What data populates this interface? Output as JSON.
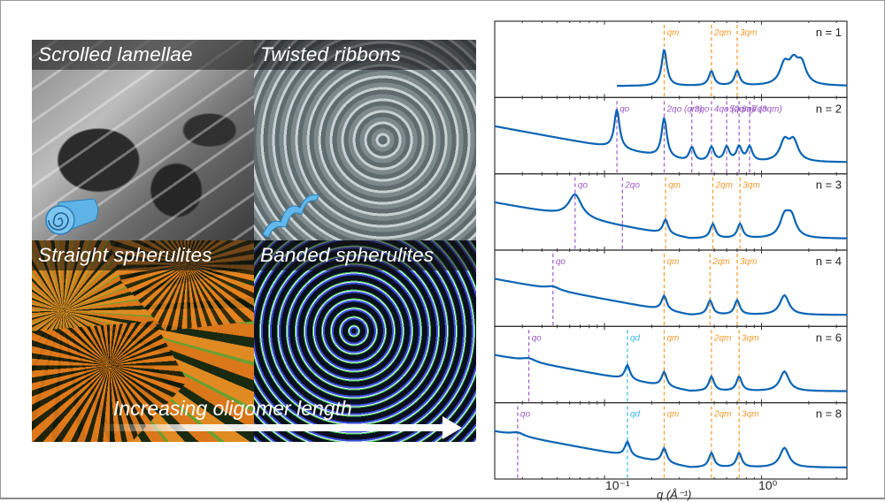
{
  "figure": {
    "left_panel": {
      "tiles": [
        {
          "label": "Scrolled lamellae"
        },
        {
          "label": "Twisted ribbons"
        },
        {
          "label": "Straight spherulites"
        },
        {
          "label": "Banded spherulites"
        }
      ],
      "arrow_label": "Increasing oligomer length"
    },
    "colors": {
      "curve": "#0a64b4",
      "q_o_line": "#9b59c8",
      "q_m_line": "#f39a2b",
      "q_d_line": "#38b6e8",
      "axis": "#333333"
    }
  },
  "chart_data": {
    "type": "line",
    "title": "",
    "xlabel": "q (Å⁻¹)",
    "ylabel": "",
    "xscale": "log",
    "xlim": [
      0.02,
      3.5
    ],
    "x_tick_labels": [
      "10⁻¹",
      "10⁰"
    ],
    "x_ticks": [
      0.1,
      1.0
    ],
    "grid": false,
    "legend": "none (panel labels top-right)",
    "panels": [
      {
        "label": "n = 1",
        "annotations": [
          {
            "text": "qm",
            "x": 0.24,
            "color": "orange"
          },
          {
            "text": "2qm",
            "x": 0.48,
            "color": "orange"
          },
          {
            "text": "3qm",
            "x": 0.7,
            "color": "orange"
          }
        ],
        "peaks_q": [
          0.24,
          0.48,
          0.7,
          1.4,
          1.6,
          1.8
        ]
      },
      {
        "label": "n = 2",
        "annotations": [
          {
            "text": "qo",
            "x": 0.12,
            "color": "purple"
          },
          {
            "text": "2qo (qm)",
            "x": 0.24,
            "color": "purple/orange"
          },
          {
            "text": "3qo",
            "x": 0.36,
            "color": "purple"
          },
          {
            "text": "4qo (2qm)",
            "x": 0.48,
            "color": "purple/orange"
          },
          {
            "text": "5qo",
            "x": 0.6,
            "color": "purple"
          },
          {
            "text": "6qo (3qm)",
            "x": 0.72,
            "color": "purple/orange"
          },
          {
            "text": "7qo",
            "x": 0.84,
            "color": "purple"
          }
        ],
        "peaks_q": [
          0.12,
          0.24,
          0.36,
          0.48,
          0.6,
          0.72,
          0.84,
          1.4,
          1.6
        ]
      },
      {
        "label": "n = 3",
        "annotations": [
          {
            "text": "qo",
            "x": 0.065,
            "color": "purple"
          },
          {
            "text": "2qo",
            "x": 0.13,
            "color": "purple"
          },
          {
            "text": "qm",
            "x": 0.245,
            "color": "orange"
          },
          {
            "text": "2qm",
            "x": 0.49,
            "color": "orange"
          },
          {
            "text": "3qm",
            "x": 0.73,
            "color": "orange"
          }
        ],
        "peaks_q": [
          0.065,
          0.245,
          0.49,
          0.73,
          1.4,
          1.55
        ]
      },
      {
        "label": "n = 4",
        "annotations": [
          {
            "text": "qo",
            "x": 0.047,
            "color": "purple"
          },
          {
            "text": "qm",
            "x": 0.24,
            "color": "orange"
          },
          {
            "text": "2qm",
            "x": 0.47,
            "color": "orange"
          },
          {
            "text": "3qm",
            "x": 0.7,
            "color": "orange"
          }
        ],
        "peaks_q": [
          0.047,
          0.24,
          0.47,
          0.7,
          1.4
        ]
      },
      {
        "label": "n = 6",
        "annotations": [
          {
            "text": "qo",
            "x": 0.033,
            "color": "purple"
          },
          {
            "text": "qd",
            "x": 0.14,
            "color": "light-blue"
          },
          {
            "text": "qm",
            "x": 0.24,
            "color": "orange"
          },
          {
            "text": "2qm",
            "x": 0.48,
            "color": "orange"
          },
          {
            "text": "3qm",
            "x": 0.72,
            "color": "orange"
          }
        ],
        "peaks_q": [
          0.033,
          0.14,
          0.24,
          0.48,
          0.72,
          1.4
        ]
      },
      {
        "label": "n = 8",
        "annotations": [
          {
            "text": "qo",
            "x": 0.028,
            "color": "purple"
          },
          {
            "text": "qd",
            "x": 0.14,
            "color": "light-blue"
          },
          {
            "text": "qm",
            "x": 0.24,
            "color": "orange"
          },
          {
            "text": "2qm",
            "x": 0.48,
            "color": "orange"
          },
          {
            "text": "3qm",
            "x": 0.72,
            "color": "orange"
          }
        ],
        "peaks_q": [
          0.028,
          0.14,
          0.24,
          0.48,
          0.72,
          1.4
        ]
      }
    ]
  }
}
